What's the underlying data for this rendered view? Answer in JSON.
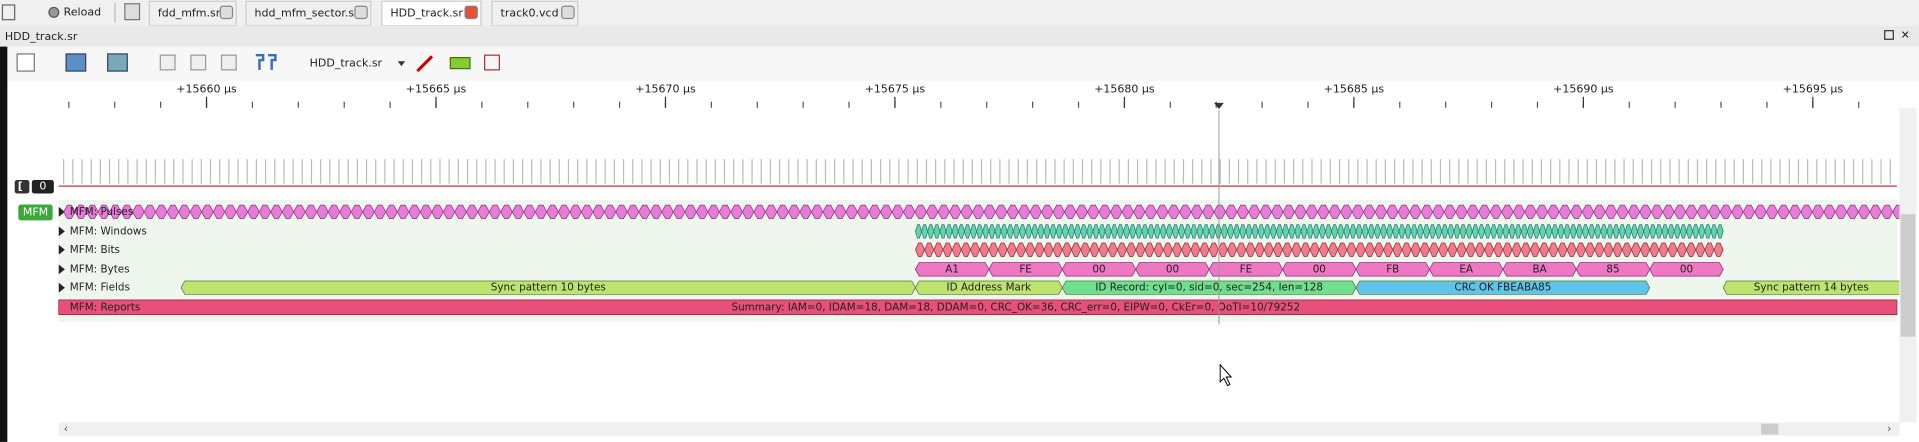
{
  "reload": "Reload",
  "tabs": [
    "fdd_mfm.sr",
    "hdd_mfm_sector.sr",
    "HDD_track.sr",
    "track0.vcd"
  ],
  "window_title": "HDD_track.sr",
  "toolbar": {
    "device": "HDD_track.sr"
  },
  "ruler": {
    "labels": [
      "+15660 µs",
      "+15665 µs",
      "+15670 µs",
      "+15675 µs",
      "+15680 µs",
      "+15685 µs",
      "+15690 µs",
      "+15695 µs"
    ]
  },
  "channel_badge": "0",
  "decoder": {
    "badge": "MFM",
    "rows": [
      "MFM: Pulses",
      "MFM: Windows",
      "MFM: Bits",
      "MFM: Bytes",
      "MFM: Fields",
      "MFM: Reports"
    ],
    "bytes": [
      "A1",
      "FE",
      "00",
      "00",
      "FE",
      "00",
      "FB",
      "EA",
      "BA",
      "85",
      "00"
    ],
    "fields": [
      "Sync pattern 10 bytes",
      "ID Address Mark",
      "ID Record: cyl=0, sid=0, sec=254, len=128",
      "CRC OK FBEABA85",
      "Sync pattern 14 bytes"
    ],
    "report": "Summary: IAM=0, IDAM=18, DAM=18, DDAM=0, CRC_OK=36, CRC_err=0, EIPW=0, CkEr=0, OoTI=10/79252"
  }
}
